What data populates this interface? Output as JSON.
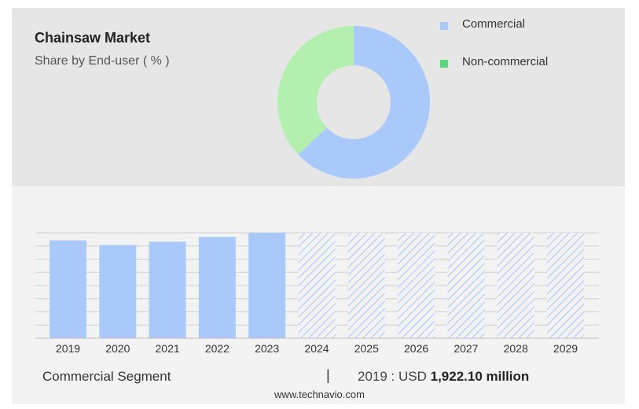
{
  "header": {
    "title": "Chainsaw Market",
    "subtitle": "Share by End-user ( % )"
  },
  "colors": {
    "commercial": "#a9c9fb",
    "non_commercial": "#b3f0b0",
    "legend_noncommercial": "#5fd67e",
    "bar": "#a9c9fb",
    "forecast_hatch": "#a9c9fb"
  },
  "chart_data": [
    {
      "type": "pie",
      "variant": "donut",
      "labels": [
        "Commercial",
        "Non-commercial"
      ],
      "values": [
        63,
        37
      ],
      "legend_position": "right"
    },
    {
      "type": "bar",
      "categories": [
        "2019",
        "2020",
        "2021",
        "2022",
        "2023",
        "2024",
        "2025",
        "2026",
        "2027",
        "2028",
        "2029"
      ],
      "values": [
        1922.1,
        1830,
        1895,
        1990,
        2070,
        null,
        null,
        null,
        null,
        null,
        null
      ],
      "forecast_categories": [
        "2024",
        "2025",
        "2026",
        "2027",
        "2028",
        "2029"
      ],
      "ylim": [
        0,
        2070
      ],
      "grid": true
    }
  ],
  "footer": {
    "segment": "Commercial Segment",
    "separator": "|",
    "value_prefix": "2019 : USD",
    "value": "1,922.10 million"
  },
  "source": "www.technavio.com"
}
